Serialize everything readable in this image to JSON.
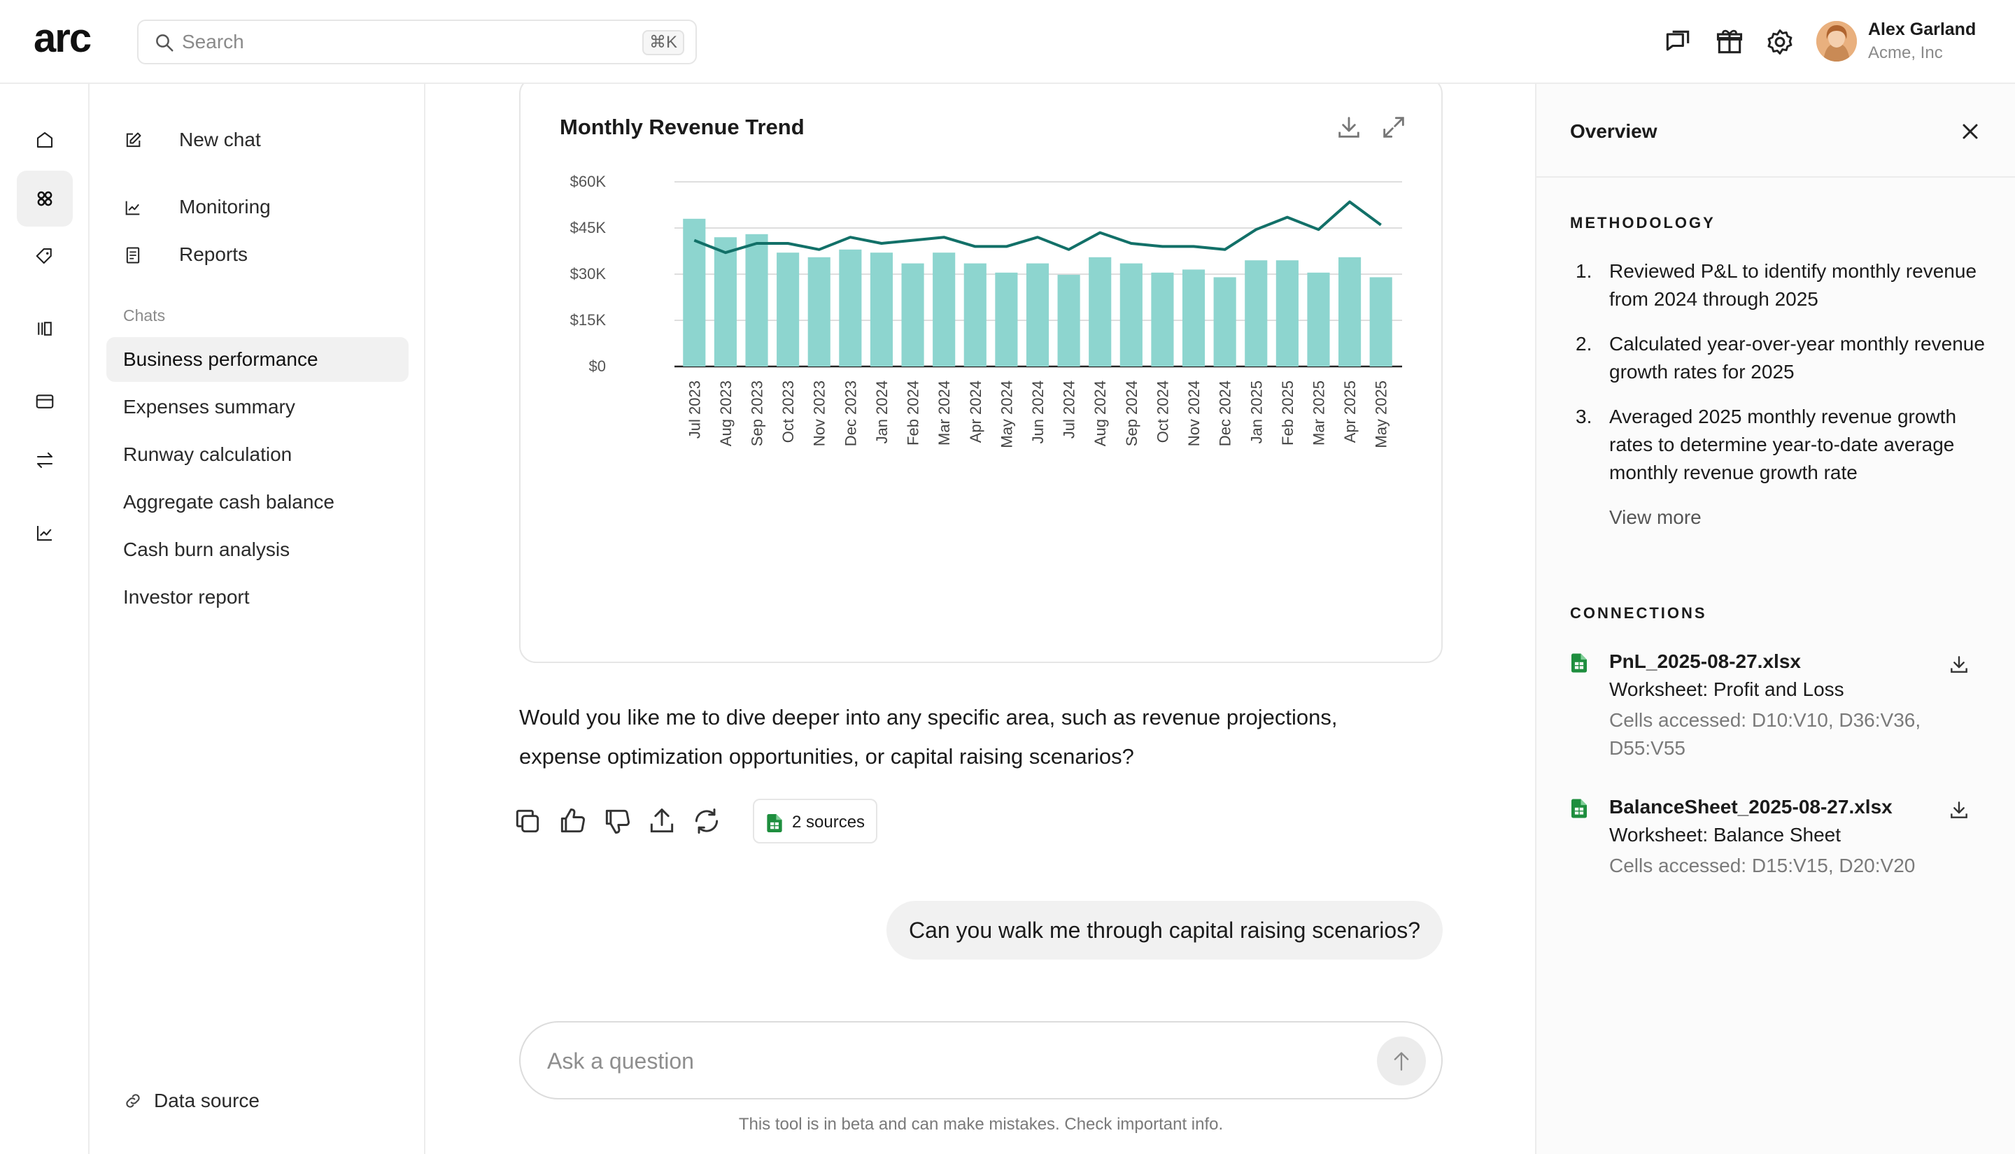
{
  "header": {
    "logo_text": "arc",
    "search_placeholder": "Search",
    "search_shortcut": "⌘K",
    "user": {
      "name": "Alex Garland",
      "org": "Acme, Inc"
    }
  },
  "sidebar": {
    "new_chat": "New chat",
    "monitoring": "Monitoring",
    "reports": "Reports",
    "chats_label": "Chats",
    "chats": [
      {
        "label": "Business performance",
        "active": true
      },
      {
        "label": "Expenses summary"
      },
      {
        "label": "Runway calculation"
      },
      {
        "label": "Aggregate cash balance"
      },
      {
        "label": "Cash burn analysis"
      },
      {
        "label": "Investor report"
      }
    ],
    "data_source": "Data source"
  },
  "chart_data": {
    "type": "bar",
    "title": "Monthly Revenue Trend",
    "categories": [
      "Jul 2023",
      "Aug 2023",
      "Sep 2023",
      "Oct 2023",
      "Nov 2023",
      "Dec 2023",
      "Jan 2024",
      "Feb 2024",
      "Mar 2024",
      "Apr 2024",
      "May 2024",
      "Jun 2024",
      "Jul 2024",
      "Aug 2024",
      "Sep 2024",
      "Oct 2024",
      "Nov 2024",
      "Dec 2024",
      "Jan 2025",
      "Feb 2025",
      "Mar 2025",
      "Apr 2025",
      "May 2025"
    ],
    "series": [
      {
        "type": "bar",
        "color": "#8dd5cf",
        "values": [
          48000,
          42000,
          43000,
          37000,
          35500,
          38000,
          37000,
          33500,
          37000,
          33500,
          30500,
          33500,
          29800,
          35500,
          33500,
          30500,
          31500,
          29000,
          34500,
          34500,
          30500,
          35500,
          29000
        ]
      },
      {
        "type": "line",
        "color": "#127068",
        "values": [
          41000,
          37000,
          40000,
          40000,
          38000,
          42000,
          40000,
          41000,
          42000,
          39000,
          39000,
          42000,
          38000,
          43500,
          40000,
          39000,
          39000,
          38000,
          44500,
          48500,
          44500,
          53500,
          46000
        ]
      }
    ],
    "yticks": [
      "$0",
      "$15K",
      "$30K",
      "$45K",
      "$60K"
    ],
    "ylim": [
      0,
      60000
    ],
    "grid": true
  },
  "message": {
    "reply": "Would you like me to dive deeper into any specific area, such as revenue projections, expense optimization opportunities, or capital raising scenarios?",
    "sources_label": "2 sources",
    "user_question": "Can you walk me through capital raising scenarios?"
  },
  "composer": {
    "placeholder": "Ask a question",
    "disclaimer": "This tool is in beta and can make mistakes. Check important info."
  },
  "panel": {
    "title": "Overview",
    "methodology_label": "METHODOLOGY",
    "steps": [
      {
        "num": "1.",
        "text": "Reviewed P&L to identify monthly revenue from 2024 through 2025"
      },
      {
        "num": "2.",
        "text": "Calculated year-over-year monthly revenue growth rates for 2025"
      },
      {
        "num": "3.",
        "text": "Averaged 2025 monthly revenue growth rates to determine year-to-date average monthly revenue growth rate"
      }
    ],
    "view_more": "View more",
    "connections_label": "CONNECTIONS",
    "connections": [
      {
        "file": "PnL_2025-08-27.xlsx",
        "worksheet": "Worksheet: Profit and Loss",
        "cells": "Cells accessed: D10:V10, D36:V36, D55:V55"
      },
      {
        "file": "BalanceSheet_2025-08-27.xlsx",
        "worksheet": "Worksheet: Balance Sheet",
        "cells": "Cells accessed: D15:V15, D20:V20"
      }
    ]
  },
  "colors": {
    "accent_bar": "#8dd5cf",
    "accent_line": "#127068",
    "sheet_green": "#1e8e3e"
  }
}
